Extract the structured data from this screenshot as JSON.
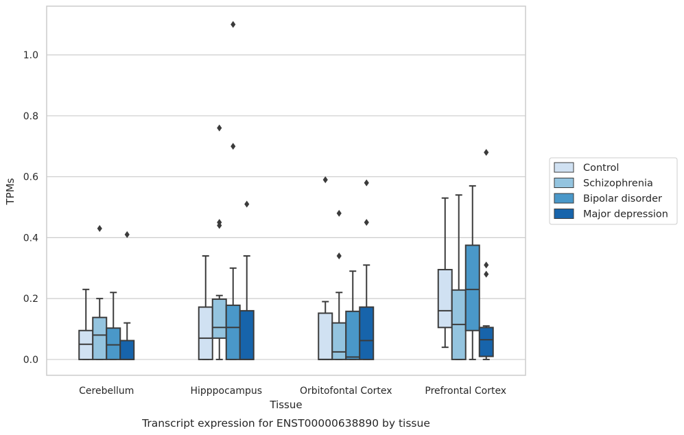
{
  "caption": "Transcript expression for ENST00000638890 by tissue",
  "chart_data": {
    "type": "box",
    "xlabel": "Tissue",
    "ylabel": "TPMs",
    "ylim": [
      -0.052,
      1.16
    ],
    "yticks": [
      "0.0",
      "0.2",
      "0.4",
      "0.6",
      "0.8",
      "1.0"
    ],
    "grid": "horizontal",
    "legend_position": "right",
    "categories": [
      "Cerebellum",
      "Hipppocampus",
      "Orbitofontal Cortex",
      "Prefrontal Cortex"
    ],
    "series": [
      {
        "name": "Control",
        "color": "#d0e1f2",
        "boxes": [
          {
            "q1": 0.0,
            "median": 0.05,
            "q3": 0.095,
            "wlo": 0.0,
            "whi": 0.23,
            "outliers": []
          },
          {
            "q1": 0.0,
            "median": 0.07,
            "q3": 0.172,
            "wlo": 0.0,
            "whi": 0.34,
            "outliers": []
          },
          {
            "q1": 0.0,
            "median": 0.0,
            "q3": 0.152,
            "wlo": 0.0,
            "whi": 0.19,
            "outliers": [
              0.59
            ]
          },
          {
            "q1": 0.105,
            "median": 0.16,
            "q3": 0.295,
            "wlo": 0.04,
            "whi": 0.53,
            "outliers": []
          }
        ]
      },
      {
        "name": "Schizophrenia",
        "color": "#94c4df",
        "boxes": [
          {
            "q1": 0.0,
            "median": 0.08,
            "q3": 0.138,
            "wlo": 0.0,
            "whi": 0.2,
            "outliers": [
              0.43
            ]
          },
          {
            "q1": 0.07,
            "median": 0.105,
            "q3": 0.198,
            "wlo": 0.0,
            "whi": 0.21,
            "outliers": [
              0.45,
              0.44,
              0.76
            ]
          },
          {
            "q1": 0.0,
            "median": 0.025,
            "q3": 0.12,
            "wlo": 0.0,
            "whi": 0.22,
            "outliers": [
              0.34,
              0.48
            ]
          },
          {
            "q1": 0.0,
            "median": 0.115,
            "q3": 0.228,
            "wlo": 0.0,
            "whi": 0.54,
            "outliers": []
          }
        ]
      },
      {
        "name": "Bipolar disorder",
        "color": "#4a98c9",
        "boxes": [
          {
            "q1": 0.0,
            "median": 0.048,
            "q3": 0.103,
            "wlo": 0.0,
            "whi": 0.22,
            "outliers": []
          },
          {
            "q1": 0.0,
            "median": 0.105,
            "q3": 0.178,
            "wlo": 0.0,
            "whi": 0.3,
            "outliers": [
              0.7,
              1.1
            ]
          },
          {
            "q1": 0.0,
            "median": 0.008,
            "q3": 0.158,
            "wlo": 0.0,
            "whi": 0.29,
            "outliers": []
          },
          {
            "q1": 0.095,
            "median": 0.23,
            "q3": 0.375,
            "wlo": 0.0,
            "whi": 0.57,
            "outliers": []
          }
        ]
      },
      {
        "name": "Major depression",
        "color": "#1764ab",
        "boxes": [
          {
            "q1": 0.0,
            "median": 0.0,
            "q3": 0.062,
            "wlo": 0.0,
            "whi": 0.12,
            "outliers": [
              0.41
            ]
          },
          {
            "q1": 0.0,
            "median": 0.0,
            "q3": 0.16,
            "wlo": 0.0,
            "whi": 0.34,
            "outliers": [
              0.51
            ]
          },
          {
            "q1": 0.0,
            "median": 0.062,
            "q3": 0.172,
            "wlo": 0.0,
            "whi": 0.31,
            "outliers": [
              0.45,
              0.58
            ]
          },
          {
            "q1": 0.01,
            "median": 0.065,
            "q3": 0.105,
            "wlo": 0.0,
            "whi": 0.11,
            "outliers": [
              0.28,
              0.31,
              0.68
            ]
          }
        ]
      }
    ]
  }
}
